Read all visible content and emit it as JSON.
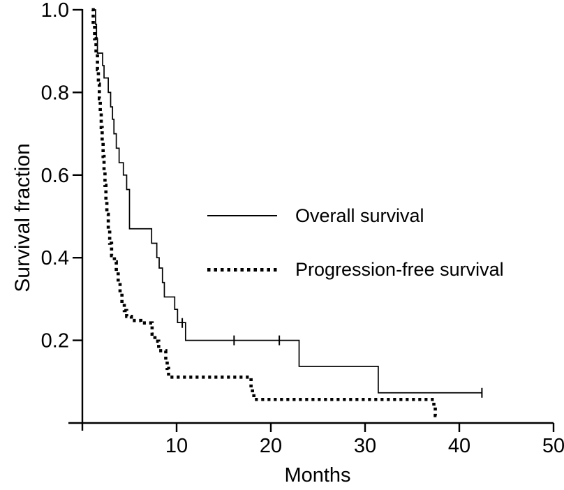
{
  "colors": {
    "ink": "#000000",
    "background": "#ffffff"
  },
  "chart_data": {
    "type": "line",
    "chart_kind": "kaplan_meier_step",
    "title": "",
    "xlabel": "Months",
    "ylabel": "Survival fraction",
    "xlim": [
      0,
      50
    ],
    "ylim": [
      0,
      1.0
    ],
    "x_tick_values": [
      10,
      20,
      30,
      40,
      50
    ],
    "x_tick_labels": [
      "10",
      "20",
      "30",
      "40",
      "50"
    ],
    "y_tick_values": [
      1.0,
      0.8,
      0.6,
      0.4,
      0.2
    ],
    "y_tick_labels": [
      "1.0",
      "0.8",
      "0.6",
      "0.4",
      "0.2"
    ],
    "grid": false,
    "legend_position": "inside-middle-right",
    "series": [
      {
        "name": "Overall survival",
        "line_style": "solid",
        "points": [
          [
            1.1,
            1.0
          ],
          [
            1.4,
            0.965
          ],
          [
            1.5,
            0.93
          ],
          [
            1.6,
            0.895
          ],
          [
            2.15,
            0.865
          ],
          [
            2.3,
            0.835
          ],
          [
            2.75,
            0.8
          ],
          [
            3.0,
            0.765
          ],
          [
            3.2,
            0.735
          ],
          [
            3.35,
            0.7
          ],
          [
            3.6,
            0.665
          ],
          [
            3.9,
            0.63
          ],
          [
            4.35,
            0.6
          ],
          [
            4.7,
            0.565
          ],
          [
            5.0,
            0.47
          ],
          [
            7.35,
            0.435
          ],
          [
            7.9,
            0.4
          ],
          [
            8.15,
            0.375
          ],
          [
            8.5,
            0.34
          ],
          [
            8.7,
            0.305
          ],
          [
            9.8,
            0.275
          ],
          [
            10.1,
            0.243
          ],
          [
            10.95,
            0.2
          ],
          [
            23.0,
            0.137
          ],
          [
            31.4,
            0.073
          ]
        ],
        "end_month": 42.4,
        "censor_marks": [
          [
            10.6,
            0.242
          ],
          [
            16.1,
            0.2
          ],
          [
            20.9,
            0.2
          ],
          [
            42.4,
            0.073
          ]
        ]
      },
      {
        "name": "Progression-free survival",
        "line_style": "dotted",
        "points": [
          [
            1.0,
            1.0
          ],
          [
            1.15,
            0.965
          ],
          [
            1.3,
            0.93
          ],
          [
            1.45,
            0.895
          ],
          [
            1.6,
            0.855
          ],
          [
            1.7,
            0.82
          ],
          [
            1.8,
            0.785
          ],
          [
            1.9,
            0.75
          ],
          [
            2.0,
            0.715
          ],
          [
            2.1,
            0.68
          ],
          [
            2.2,
            0.645
          ],
          [
            2.3,
            0.61
          ],
          [
            2.4,
            0.575
          ],
          [
            2.5,
            0.54
          ],
          [
            2.6,
            0.505
          ],
          [
            2.75,
            0.47
          ],
          [
            2.9,
            0.435
          ],
          [
            3.1,
            0.405
          ],
          [
            3.4,
            0.39
          ],
          [
            3.6,
            0.365
          ],
          [
            3.8,
            0.34
          ],
          [
            4.0,
            0.315
          ],
          [
            4.2,
            0.29
          ],
          [
            4.45,
            0.272
          ],
          [
            4.7,
            0.258
          ],
          [
            5.2,
            0.248
          ],
          [
            6.2,
            0.242
          ],
          [
            7.4,
            0.215
          ],
          [
            7.7,
            0.198
          ],
          [
            8.1,
            0.175
          ],
          [
            8.85,
            0.15
          ],
          [
            9.0,
            0.132
          ],
          [
            9.15,
            0.111
          ],
          [
            17.9,
            0.085
          ],
          [
            18.05,
            0.07
          ],
          [
            18.2,
            0.057
          ],
          [
            37.3,
            0.038
          ],
          [
            37.45,
            0.018
          ]
        ],
        "end_month": 37.6,
        "censor_marks": []
      }
    ]
  }
}
